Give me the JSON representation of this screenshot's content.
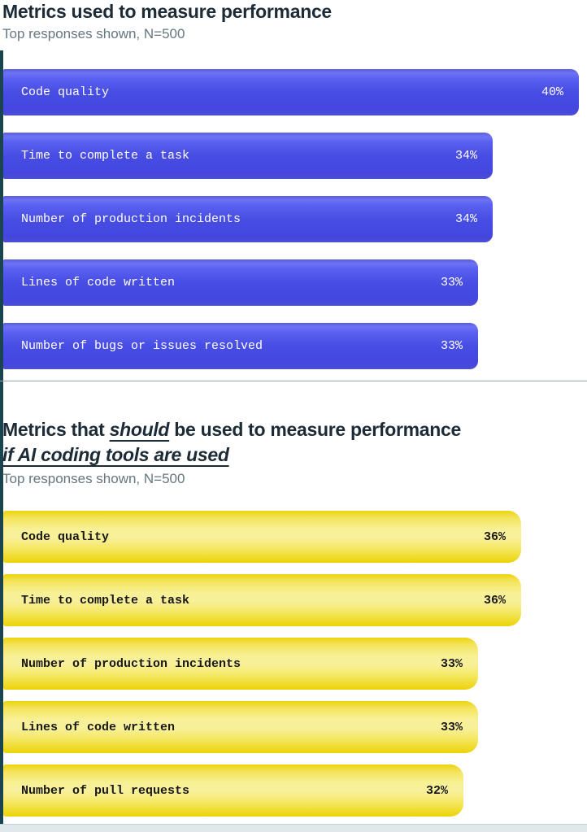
{
  "page": {
    "background": "#ffffff",
    "left_edge_color": "#1a4450",
    "bottom_strip_color": "#dfe9ec",
    "separator_color": "#9aa7ae",
    "title_color": "#1d2b36",
    "subtitle_color": "#65767f"
  },
  "section1": {
    "title": "Metrics used to measure performance",
    "subtitle": "Top responses shown, N=500"
  },
  "section2": {
    "title_part1": "Metrics that ",
    "title_emphasis": "should",
    "title_part2": " be used to measure performance",
    "title_line2": "if AI coding tools are used",
    "subtitle": "Top responses shown, N=500"
  },
  "chart_data": [
    {
      "type": "bar",
      "orientation": "horizontal",
      "title": "Metrics used to measure performance",
      "subtitle": "Top responses shown, N=500",
      "categories": [
        "Code quality",
        "Time to complete a task",
        "Number of production incidents",
        "Lines of code written",
        "Number of bugs or issues resolved"
      ],
      "values": [
        40,
        34,
        34,
        33,
        33
      ],
      "unit": "%",
      "value_labels": [
        "40%",
        "34%",
        "34%",
        "33%",
        "33%"
      ],
      "bar_color": "#4a50e6",
      "text_color": "#ffffff",
      "xlim": [
        0,
        40
      ],
      "grid": false,
      "legend": false
    },
    {
      "type": "bar",
      "orientation": "horizontal",
      "title": "Metrics that should be used to measure performance if AI coding tools are used",
      "subtitle": "Top responses shown, N=500",
      "categories": [
        "Code quality",
        "Time to complete a task",
        "Number of production incidents",
        "Lines of code written",
        "Number of pull requests"
      ],
      "values": [
        36,
        36,
        33,
        33,
        32
      ],
      "unit": "%",
      "value_labels": [
        "36%",
        "36%",
        "33%",
        "33%",
        "32%"
      ],
      "bar_color": "#f5e532",
      "text_color": "#1a1a1a",
      "xlim": [
        0,
        40
      ],
      "grid": false,
      "legend": false
    }
  ]
}
